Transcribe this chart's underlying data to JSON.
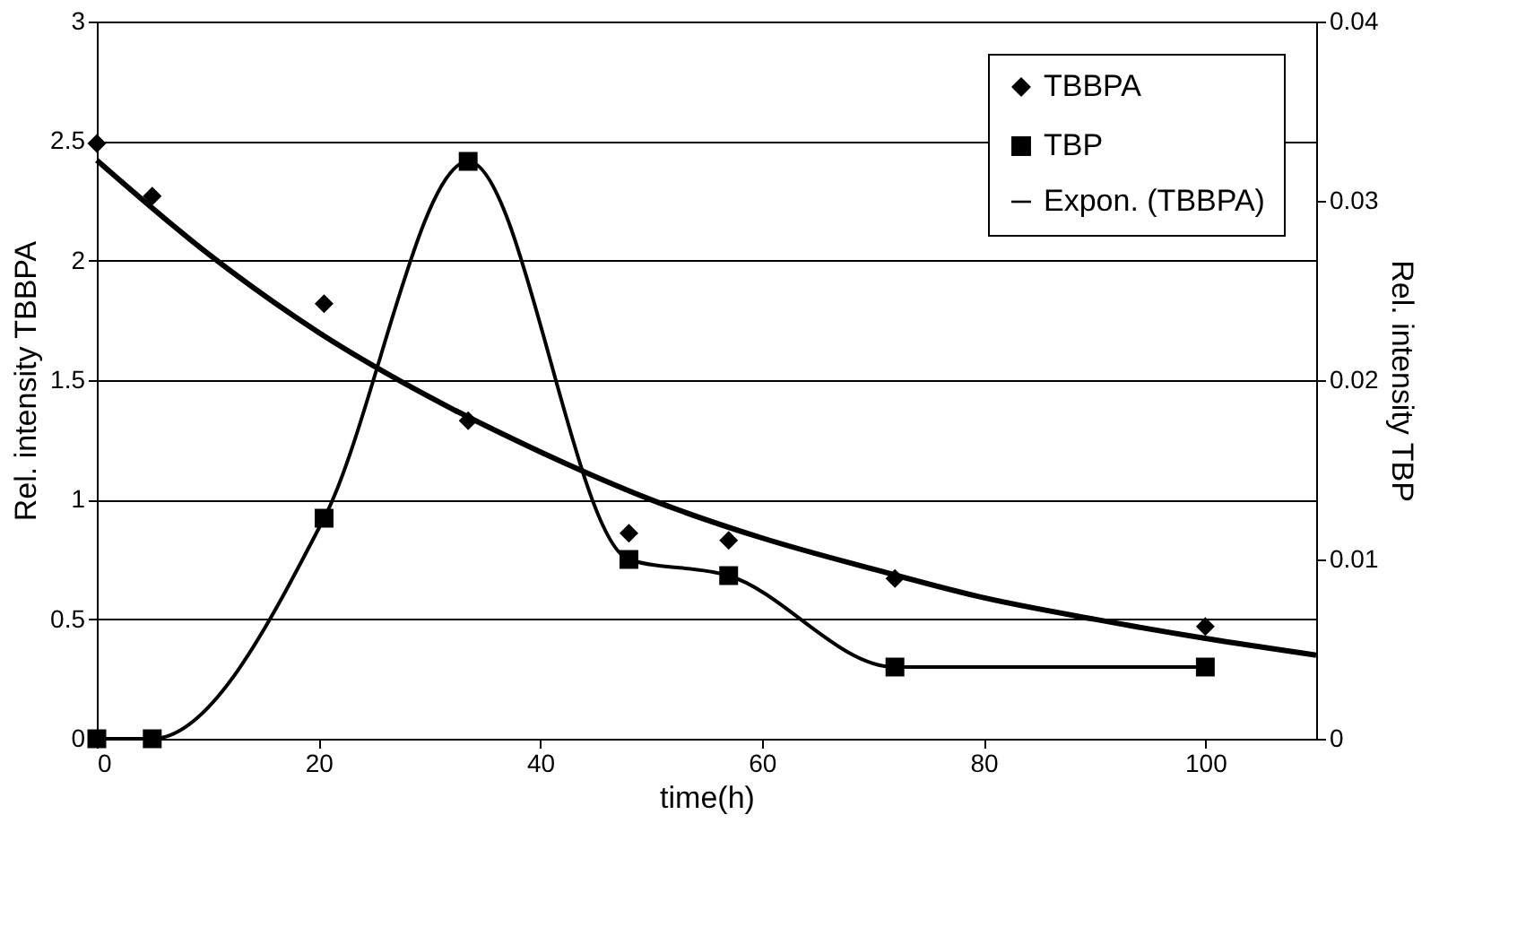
{
  "chart_data": {
    "type": "line",
    "xlabel": "time(h)",
    "ylabel": "Rel. intensity TBBPA",
    "y2label": "Rel. intensity TBP",
    "xlim": [
      0,
      110
    ],
    "xticks": [
      0,
      20,
      40,
      60,
      80,
      100
    ],
    "ylim": [
      0,
      3
    ],
    "yticks": [
      0,
      0.5,
      1,
      1.5,
      2,
      2.5,
      3
    ],
    "y2lim": [
      0,
      0.04
    ],
    "y2ticks": [
      0,
      0.01,
      0.02,
      0.03,
      0.04
    ],
    "grid": "y",
    "legend": "top right",
    "series": [
      {
        "name": "TBBPA",
        "type": "scatter",
        "marker": "diamond",
        "color": "#000000",
        "x": [
          0,
          5,
          20.5,
          33.5,
          48,
          57,
          72,
          100
        ],
        "values": [
          2.49,
          2.27,
          1.82,
          1.33,
          0.86,
          0.83,
          0.67,
          0.47
        ]
      },
      {
        "name": "TBP",
        "axis": "y2",
        "marker": "square",
        "color": "#000000",
        "x": [
          0,
          5,
          20.5,
          33.5,
          48,
          57,
          72,
          100
        ],
        "values": [
          0,
          0,
          0.0123,
          0.0322,
          0.01,
          0.0091,
          0.004,
          0.004
        ]
      },
      {
        "name": "Expon. (TBBPA)",
        "marker": "none",
        "color": "#000000",
        "x": [
          0,
          10,
          20,
          30,
          40,
          50,
          60,
          70,
          80,
          90,
          100,
          110
        ],
        "values": [
          2.42,
          2.03,
          1.7,
          1.43,
          1.2,
          1.0,
          0.84,
          0.71,
          0.59,
          0.5,
          0.42,
          0.35
        ]
      }
    ]
  }
}
